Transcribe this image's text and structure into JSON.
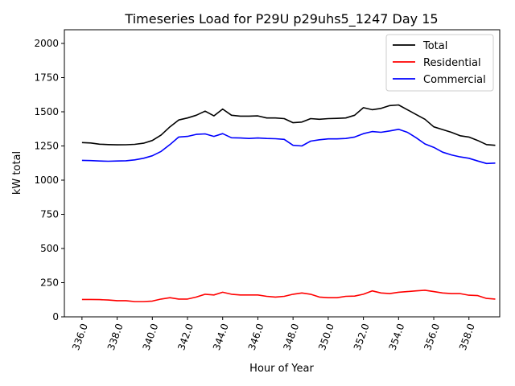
{
  "chart_data": {
    "type": "line",
    "title": "Timeseries Load for P29U p29uhs5_1247  Day 15",
    "xlabel": "Hour of Year",
    "ylabel": "kW total",
    "xlim": [
      335.0,
      359.75
    ],
    "ylim": [
      0,
      2100
    ],
    "xticks": [
      336,
      338,
      340,
      342,
      344,
      346,
      348,
      350,
      352,
      354,
      356,
      358
    ],
    "xtick_labels": [
      "336.0",
      "338.0",
      "340.0",
      "342.0",
      "344.0",
      "346.0",
      "348.0",
      "350.0",
      "352.0",
      "354.0",
      "356.0",
      "358.0"
    ],
    "yticks": [
      0,
      250,
      500,
      750,
      1000,
      1250,
      1500,
      1750,
      2000
    ],
    "ytick_labels": [
      "0",
      "250",
      "500",
      "750",
      "1000",
      "1250",
      "1500",
      "1750",
      "2000"
    ],
    "legend_position": "top-right",
    "series": [
      {
        "name": "Total",
        "color": "#000000",
        "x": [
          336,
          336.5,
          337,
          337.5,
          338,
          338.5,
          339,
          339.5,
          340,
          340.5,
          341,
          341.5,
          342,
          342.5,
          343,
          343.5,
          344,
          344.5,
          345,
          345.5,
          346,
          346.5,
          347,
          347.5,
          348,
          348.5,
          349,
          349.5,
          350,
          350.5,
          351,
          351.5,
          352,
          352.5,
          353,
          353.5,
          354,
          354.5,
          355,
          355.5,
          356,
          356.5,
          357,
          357.5,
          358,
          358.5,
          359,
          359.5
        ],
        "values": [
          1275,
          1272,
          1263,
          1260,
          1258,
          1259,
          1262,
          1270,
          1290,
          1330,
          1390,
          1440,
          1455,
          1475,
          1505,
          1470,
          1520,
          1475,
          1468,
          1468,
          1470,
          1455,
          1455,
          1450,
          1420,
          1425,
          1450,
          1445,
          1450,
          1452,
          1455,
          1475,
          1530,
          1515,
          1525,
          1545,
          1550,
          1515,
          1480,
          1445,
          1390,
          1370,
          1350,
          1325,
          1315,
          1290,
          1260,
          1255
        ]
      },
      {
        "name": "Residential",
        "color": "#ff0000",
        "x": [
          336,
          336.5,
          337,
          337.5,
          338,
          338.5,
          339,
          339.5,
          340,
          340.5,
          341,
          341.5,
          342,
          342.5,
          343,
          343.5,
          344,
          344.5,
          345,
          345.5,
          346,
          346.5,
          347,
          347.5,
          348,
          348.5,
          349,
          349.5,
          350,
          350.5,
          351,
          351.5,
          352,
          352.5,
          353,
          353.5,
          354,
          354.5,
          355,
          355.5,
          356,
          356.5,
          357,
          357.5,
          358,
          358.5,
          359,
          359.5
        ],
        "values": [
          127,
          127,
          126,
          123,
          118,
          118,
          112,
          112,
          115,
          130,
          140,
          130,
          130,
          145,
          165,
          160,
          180,
          165,
          160,
          160,
          160,
          150,
          145,
          150,
          165,
          175,
          165,
          145,
          140,
          140,
          150,
          152,
          165,
          190,
          175,
          170,
          180,
          185,
          190,
          195,
          185,
          175,
          170,
          170,
          158,
          155,
          135,
          130
        ]
      },
      {
        "name": "Commercial",
        "color": "#0000ff",
        "x": [
          336,
          336.5,
          337,
          337.5,
          338,
          338.5,
          339,
          339.5,
          340,
          340.5,
          341,
          341.5,
          342,
          342.5,
          343,
          343.5,
          344,
          344.5,
          345,
          345.5,
          346,
          346.5,
          347,
          347.5,
          348,
          348.5,
          349,
          349.5,
          350,
          350.5,
          351,
          351.5,
          352,
          352.5,
          353,
          353.5,
          354,
          354.5,
          355,
          355.5,
          356,
          356.5,
          357,
          357.5,
          358,
          358.5,
          359,
          359.5
        ],
        "values": [
          1145,
          1143,
          1140,
          1138,
          1140,
          1142,
          1148,
          1160,
          1178,
          1210,
          1260,
          1315,
          1320,
          1335,
          1338,
          1320,
          1340,
          1310,
          1308,
          1305,
          1308,
          1305,
          1303,
          1298,
          1255,
          1250,
          1285,
          1295,
          1302,
          1302,
          1305,
          1315,
          1340,
          1355,
          1350,
          1360,
          1372,
          1350,
          1310,
          1265,
          1240,
          1205,
          1185,
          1170,
          1160,
          1140,
          1122,
          1125
        ]
      }
    ]
  }
}
